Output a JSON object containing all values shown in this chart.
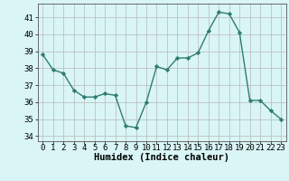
{
  "x": [
    0,
    1,
    2,
    3,
    4,
    5,
    6,
    7,
    8,
    9,
    10,
    11,
    12,
    13,
    14,
    15,
    16,
    17,
    18,
    19,
    20,
    21,
    22,
    23
  ],
  "y": [
    38.8,
    37.9,
    37.7,
    36.7,
    36.3,
    36.3,
    36.5,
    36.4,
    34.6,
    34.5,
    36.0,
    38.1,
    37.9,
    38.6,
    38.6,
    38.9,
    40.2,
    41.3,
    41.2,
    40.1,
    36.1,
    36.1,
    35.5,
    35.0
  ],
  "line_color": "#2e7d6e",
  "marker": "D",
  "marker_size": 2.2,
  "line_width": 1.0,
  "bg_color": "#d9f5f5",
  "grid_color": "#b8b8b8",
  "xlabel": "Humidex (Indice chaleur)",
  "xlabel_fontsize": 7.5,
  "tick_fontsize": 6.5,
  "ylim": [
    33.7,
    41.8
  ],
  "xlim": [
    -0.5,
    23.5
  ],
  "yticks": [
    34,
    35,
    36,
    37,
    38,
    39,
    40,
    41
  ],
  "xticks": [
    0,
    1,
    2,
    3,
    4,
    5,
    6,
    7,
    8,
    9,
    10,
    11,
    12,
    13,
    14,
    15,
    16,
    17,
    18,
    19,
    20,
    21,
    22,
    23
  ]
}
